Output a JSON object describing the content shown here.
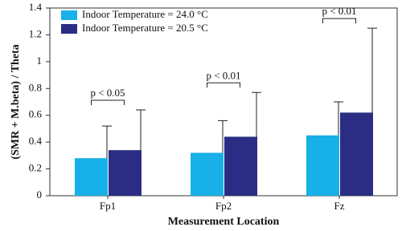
{
  "chart_data": {
    "type": "bar",
    "y_label": "(SMR + M.beta) / Theta",
    "x_label": "Measurement Location",
    "categories": [
      "Fp1",
      "Fp2",
      "Fz"
    ],
    "series": [
      {
        "name": "Indoor Temperature = 24.0 °C",
        "color": "#17b0e8",
        "values": [
          0.28,
          0.32,
          0.45
        ],
        "errors": [
          0.24,
          0.24,
          0.25
        ]
      },
      {
        "name": "Indoor Temperature = 20.5 °C",
        "color": "#2b2d84",
        "values": [
          0.34,
          0.44,
          0.62
        ],
        "errors": [
          0.3,
          0.33,
          0.63
        ]
      }
    ],
    "annotations": [
      {
        "text": "p < 0.05",
        "category": 0
      },
      {
        "text": "p < 0.01",
        "category": 1
      },
      {
        "text": "p < 0.01",
        "category": 2
      }
    ],
    "ylim": [
      0,
      1.4
    ],
    "yticks": [
      0,
      0.2,
      0.4,
      0.6,
      0.8,
      1,
      1.2,
      1.4
    ],
    "grid": false,
    "legend": "top-left"
  }
}
